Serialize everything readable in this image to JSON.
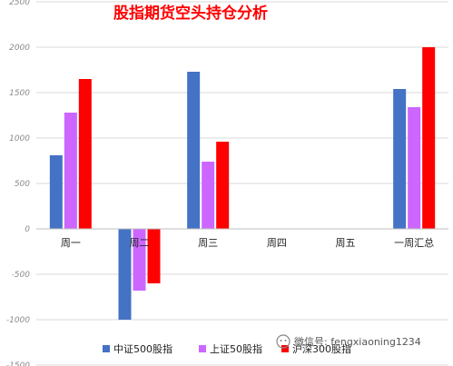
{
  "chart_data": {
    "type": "bar",
    "title": "股指期货空头持仓分析",
    "categories": [
      "周一",
      "周二",
      "周三",
      "周四",
      "周五",
      "一周汇总"
    ],
    "series": [
      {
        "name": "中证500股指",
        "color": "#4472c4",
        "values": [
          810,
          -1000,
          1730,
          0,
          0,
          1540
        ]
      },
      {
        "name": "上证50股指",
        "color": "#cc66ff",
        "values": [
          1280,
          -680,
          740,
          0,
          0,
          1340
        ]
      },
      {
        "name": "沪深300股指",
        "color": "#ff0000",
        "values": [
          1650,
          -600,
          960,
          0,
          0,
          2000
        ]
      }
    ],
    "ylim": [
      -1500,
      2500
    ],
    "yticks": [
      "2500",
      "2000",
      "1500",
      "1000",
      "500",
      "0",
      "-500",
      "-1000",
      "-1500"
    ],
    "grid": true,
    "legend_position": "bottom"
  },
  "watermark": {
    "icon": "wechat-icon",
    "text": "微信号: fengxiaoning1234"
  }
}
